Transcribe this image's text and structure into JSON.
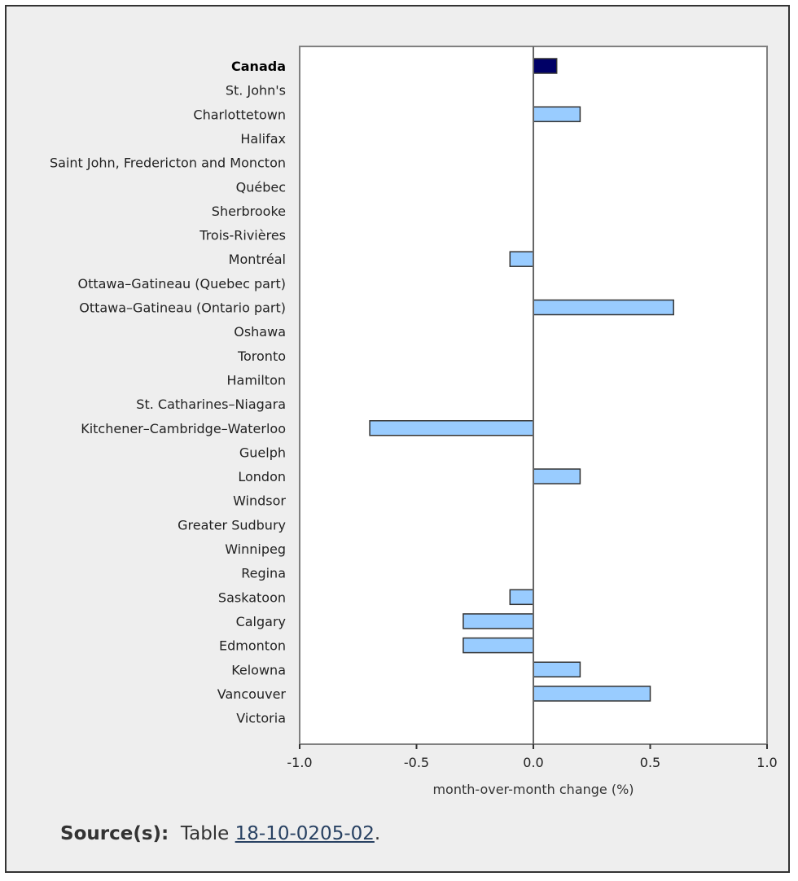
{
  "chart_data": {
    "type": "bar",
    "orientation": "horizontal",
    "categories": [
      "Canada",
      "St. John's",
      "Charlottetown",
      "Halifax",
      "Saint John, Fredericton and Moncton",
      "Québec",
      "Sherbrooke",
      "Trois-Rivières",
      "Montréal",
      "Ottawa–Gatineau (Quebec part)",
      "Ottawa–Gatineau (Ontario part)",
      "Oshawa",
      "Toronto",
      "Hamilton",
      "St. Catharines–Niagara",
      "Kitchener–Cambridge–Waterloo",
      "Guelph",
      "London",
      "Windsor",
      "Greater Sudbury",
      "Winnipeg",
      "Regina",
      "Saskatoon",
      "Calgary",
      "Edmonton",
      "Kelowna",
      "Vancouver",
      "Victoria"
    ],
    "values": [
      0.1,
      0.0,
      0.2,
      0.0,
      0.0,
      0.0,
      0.0,
      0.0,
      -0.1,
      0.0,
      0.6,
      0.0,
      0.0,
      0.0,
      0.0,
      -0.7,
      0.0,
      0.2,
      0.0,
      0.0,
      0.0,
      0.0,
      -0.1,
      -0.3,
      -0.3,
      0.2,
      0.5,
      0.0
    ],
    "highlight_category": "Canada",
    "xlabel": "month-over-month change (%)",
    "xlim": [
      -1.0,
      1.0
    ],
    "xticks": [
      "-1.0",
      "-0.5",
      "0.0",
      "0.5",
      "1.0"
    ],
    "colors": {
      "bar": "#99ccff",
      "highlight": "#000066",
      "bar_border": "#333333",
      "axis": "#666666"
    },
    "grid": false
  },
  "source": {
    "label": "Source(s):",
    "text": "Table",
    "link": "18-10-0205-02",
    "suffix": "."
  }
}
